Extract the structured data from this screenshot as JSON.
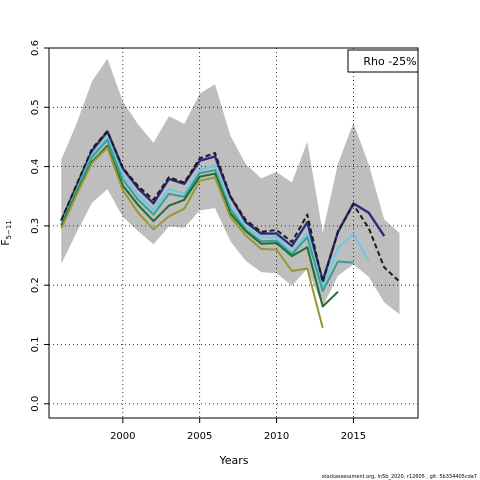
{
  "chart_data": {
    "type": "line",
    "xlabel": "Years",
    "ylabel": "F",
    "ylabel_sub": "5−11",
    "xlim": [
      1995.2,
      2019.2
    ],
    "ylim": [
      -0.024,
      0.6
    ],
    "xticks": [
      2000,
      2005,
      2010,
      2015
    ],
    "yticks": [
      0.0,
      0.1,
      0.2,
      0.3,
      0.4,
      0.5,
      0.6
    ],
    "ytick_labels": [
      "0.0",
      "0.1",
      "0.2",
      "0.3",
      "0.4",
      "0.5",
      "0.6"
    ],
    "xtick_labels": [
      "2000",
      "2005",
      "2010",
      "2015"
    ],
    "grid": true,
    "legend": {
      "text": "Rho -25%",
      "placement": "top-right"
    },
    "footer": "stockassessment.org, ln5b_2020, r12605 , git: 5b334405cda7",
    "band": {
      "x": [
        1996,
        1997,
        1998,
        1999,
        2000,
        2001,
        2002,
        2003,
        2004,
        2005,
        2006,
        2007,
        2008,
        2009,
        2010,
        2011,
        2012,
        2013,
        2014,
        2015,
        2016,
        2017,
        2018
      ],
      "lower": [
        0.236,
        0.289,
        0.339,
        0.362,
        0.315,
        0.291,
        0.269,
        0.299,
        0.297,
        0.326,
        0.33,
        0.274,
        0.241,
        0.222,
        0.22,
        0.199,
        0.228,
        0.164,
        0.216,
        0.235,
        0.214,
        0.171,
        0.151
      ],
      "upper": [
        0.412,
        0.473,
        0.544,
        0.582,
        0.51,
        0.471,
        0.44,
        0.485,
        0.472,
        0.523,
        0.539,
        0.452,
        0.404,
        0.38,
        0.391,
        0.373,
        0.442,
        0.289,
        0.405,
        0.474,
        0.403,
        0.311,
        0.288
      ],
      "color": "#bebebe"
    },
    "series": [
      {
        "color": "#1b1b1b",
        "dashed": true,
        "width": 2,
        "x": [
          1996,
          1997,
          1998,
          1999,
          2000,
          2001,
          2002,
          2003,
          2004,
          2005,
          2006,
          2007,
          2008,
          2009,
          2010,
          2011,
          2012,
          2013,
          2014,
          2015,
          2016,
          2017,
          2018
        ],
        "values": [
          0.31,
          0.37,
          0.43,
          0.46,
          0.398,
          0.367,
          0.344,
          0.382,
          0.373,
          0.414,
          0.423,
          0.35,
          0.31,
          0.29,
          0.293,
          0.273,
          0.319,
          0.205,
          0.291,
          0.336,
          0.296,
          0.23,
          0.206
        ]
      },
      {
        "color": "#2c2b7e",
        "dashed": false,
        "width": 2.4,
        "x": [
          1996,
          1997,
          1998,
          1999,
          2000,
          2001,
          2002,
          2003,
          2004,
          2005,
          2006,
          2007,
          2008,
          2009,
          2010,
          2011,
          2012,
          2013,
          2014,
          2015,
          2016,
          2017
        ],
        "values": [
          0.308,
          0.368,
          0.427,
          0.459,
          0.397,
          0.363,
          0.338,
          0.379,
          0.371,
          0.41,
          0.417,
          0.349,
          0.306,
          0.287,
          0.287,
          0.266,
          0.306,
          0.207,
          0.29,
          0.338,
          0.322,
          0.283
        ]
      },
      {
        "color": "#6cc9e3",
        "dashed": false,
        "width": 2,
        "x": [
          1996,
          1997,
          1998,
          1999,
          2000,
          2001,
          2002,
          2003,
          2004,
          2005,
          2006,
          2007,
          2008,
          2009,
          2010,
          2011,
          2012,
          2013,
          2014,
          2015,
          2016
        ],
        "values": [
          0.303,
          0.362,
          0.42,
          0.45,
          0.386,
          0.352,
          0.327,
          0.362,
          0.355,
          0.394,
          0.402,
          0.334,
          0.298,
          0.281,
          0.281,
          0.255,
          0.288,
          0.197,
          0.262,
          0.287,
          0.24
        ]
      },
      {
        "color": "#3b9e96",
        "dashed": false,
        "width": 2,
        "x": [
          1996,
          1997,
          1998,
          1999,
          2000,
          2001,
          2002,
          2003,
          2004,
          2005,
          2006,
          2007,
          2008,
          2009,
          2010,
          2011,
          2012,
          2013,
          2014,
          2015
        ],
        "values": [
          0.301,
          0.36,
          0.416,
          0.445,
          0.378,
          0.344,
          0.319,
          0.354,
          0.349,
          0.389,
          0.394,
          0.328,
          0.293,
          0.274,
          0.275,
          0.252,
          0.281,
          0.19,
          0.24,
          0.238
        ]
      },
      {
        "color": "#1f6e2f",
        "dashed": false,
        "width": 2,
        "x": [
          1996,
          1997,
          1998,
          1999,
          2000,
          2001,
          2002,
          2003,
          2004,
          2005,
          2006,
          2007,
          2008,
          2009,
          2010,
          2011,
          2012,
          2013,
          2014
        ],
        "values": [
          0.3,
          0.355,
          0.408,
          0.435,
          0.368,
          0.335,
          0.308,
          0.334,
          0.344,
          0.383,
          0.388,
          0.321,
          0.291,
          0.27,
          0.271,
          0.249,
          0.264,
          0.164,
          0.189
        ]
      },
      {
        "color": "#9a9630",
        "dashed": false,
        "width": 2,
        "x": [
          1996,
          1997,
          1998,
          1999,
          2000,
          2001,
          2002,
          2003,
          2004,
          2005,
          2006,
          2007,
          2008,
          2009,
          2010,
          2011,
          2012,
          2013
        ],
        "values": [
          0.296,
          0.353,
          0.406,
          0.432,
          0.36,
          0.322,
          0.294,
          0.316,
          0.329,
          0.376,
          0.382,
          0.315,
          0.284,
          0.261,
          0.26,
          0.224,
          0.228,
          0.128
        ]
      }
    ]
  }
}
